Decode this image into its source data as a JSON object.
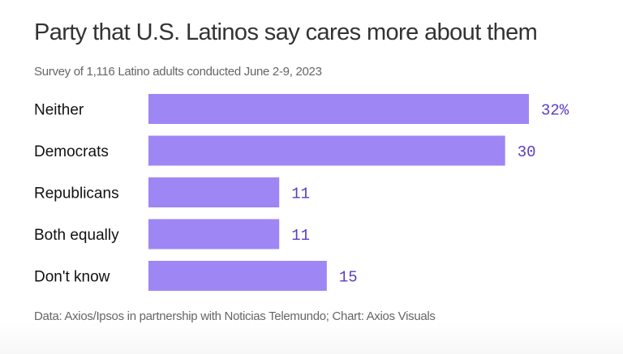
{
  "header": {
    "title": "Party that U.S. Latinos say cares more about them",
    "subtitle": "Survey of 1,116 Latino adults conducted June 2-9, 2023"
  },
  "footer": {
    "source": "Data: Axios/Ipsos in partnership with Noticias Telemundo; Chart: Axios Visuals"
  },
  "colors": {
    "bar": "#9f86f5",
    "value_text": "#5b3cc4"
  },
  "chart_data": {
    "type": "bar",
    "orientation": "horizontal",
    "title": "Party that U.S. Latinos say cares more about them",
    "subtitle": "Survey of 1,116 Latino adults conducted June 2-9, 2023",
    "categories": [
      "Neither",
      "Democrats",
      "Republicans",
      "Both equally",
      "Don't know"
    ],
    "values": [
      32,
      30,
      11,
      11,
      15
    ],
    "value_labels": [
      "32%",
      "30",
      "11",
      "11",
      "15"
    ],
    "unit": "%",
    "xlabel": "",
    "ylabel": "",
    "xlim": [
      0,
      32
    ],
    "grid": false,
    "legend": "none"
  }
}
